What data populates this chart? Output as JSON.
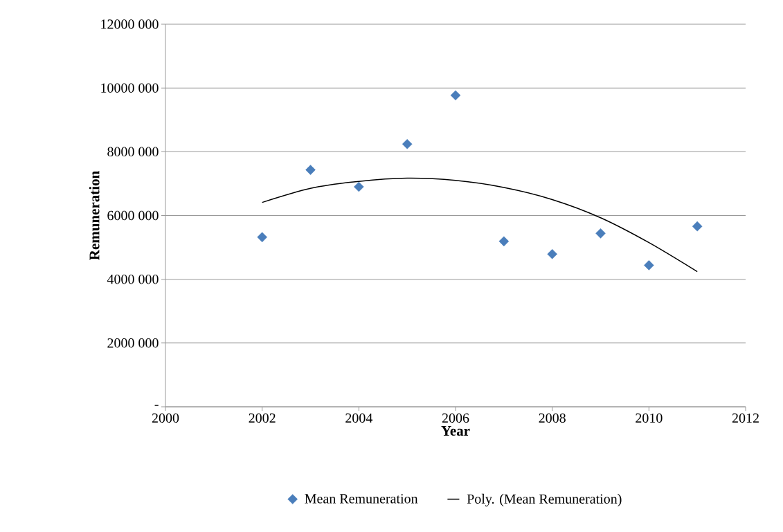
{
  "chart_data": {
    "type": "scatter",
    "xlabel": "Year",
    "ylabel": "Remuneration",
    "series": [
      {
        "name": "Mean Remuneration",
        "color": "#4a7ebb",
        "marker": "diamond",
        "x": [
          2002,
          2003,
          2004,
          2005,
          2006,
          2007,
          2008,
          2009,
          2010,
          2011
        ],
        "values": [
          5320000,
          7430000,
          6900000,
          8240000,
          9770000,
          5190000,
          4790000,
          5440000,
          4440000,
          5660000
        ]
      },
      {
        "name": "Poly. (Mean Remuneration)",
        "type": "line",
        "color": "#000000",
        "marker": "none",
        "line_style": "solid",
        "x": [
          2002,
          2003,
          2004,
          2005,
          2006,
          2007,
          2008,
          2009,
          2010,
          2011
        ],
        "values": [
          6410000,
          6850000,
          7070000,
          7170000,
          7100000,
          6880000,
          6500000,
          5930000,
          5150000,
          4240000
        ]
      }
    ],
    "xlim": [
      2000,
      2012
    ],
    "xticks": [
      2000,
      2002,
      2004,
      2006,
      2008,
      2010,
      2012
    ],
    "ylim": [
      0,
      12000000
    ],
    "yticks": [
      {
        "value": 0,
        "label": "-"
      },
      {
        "value": 2000000,
        "label": "2000 000"
      },
      {
        "value": 4000000,
        "label": "4000 000"
      },
      {
        "value": 6000000,
        "label": "6000 000"
      },
      {
        "value": 8000000,
        "label": "8000 000"
      },
      {
        "value": 10000000,
        "label": "10000 000"
      },
      {
        "value": 12000000,
        "label": "12000 000"
      }
    ],
    "grid": "y",
    "legend": "bottom"
  }
}
